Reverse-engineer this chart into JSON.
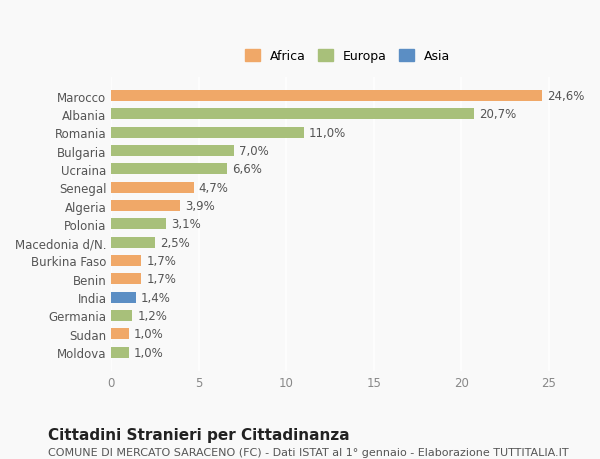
{
  "countries": [
    "Marocco",
    "Albania",
    "Romania",
    "Bulgaria",
    "Ucraina",
    "Senegal",
    "Algeria",
    "Polonia",
    "Macedonia d/N.",
    "Burkina Faso",
    "Benin",
    "India",
    "Germania",
    "Sudan",
    "Moldova"
  ],
  "values": [
    24.6,
    20.7,
    11.0,
    7.0,
    6.6,
    4.7,
    3.9,
    3.1,
    2.5,
    1.7,
    1.7,
    1.4,
    1.2,
    1.0,
    1.0
  ],
  "labels": [
    "24,6%",
    "20,7%",
    "11,0%",
    "7,0%",
    "6,6%",
    "4,7%",
    "3,9%",
    "3,1%",
    "2,5%",
    "1,7%",
    "1,7%",
    "1,4%",
    "1,2%",
    "1,0%",
    "1,0%"
  ],
  "continents": [
    "Africa",
    "Europa",
    "Europa",
    "Europa",
    "Europa",
    "Africa",
    "Africa",
    "Europa",
    "Europa",
    "Africa",
    "Africa",
    "Asia",
    "Europa",
    "Africa",
    "Europa"
  ],
  "colors": {
    "Africa": "#F0A868",
    "Europa": "#A8C07A",
    "Asia": "#5B8EC4"
  },
  "legend_colors": {
    "Africa": "#F0A868",
    "Europa": "#A8C07A",
    "Asia": "#5B8EC4"
  },
  "title": "Cittadini Stranieri per Cittadinanza",
  "subtitle": "COMUNE DI MERCATO SARACENO (FC) - Dati ISTAT al 1° gennaio - Elaborazione TUTTITALIA.IT",
  "xlim": [
    0,
    27
  ],
  "xticks": [
    0,
    5,
    10,
    15,
    20,
    25
  ],
  "bg_color": "#f9f9f9",
  "bar_height": 0.6,
  "label_fontsize": 8.5,
  "tick_fontsize": 8.5,
  "title_fontsize": 11,
  "subtitle_fontsize": 8
}
